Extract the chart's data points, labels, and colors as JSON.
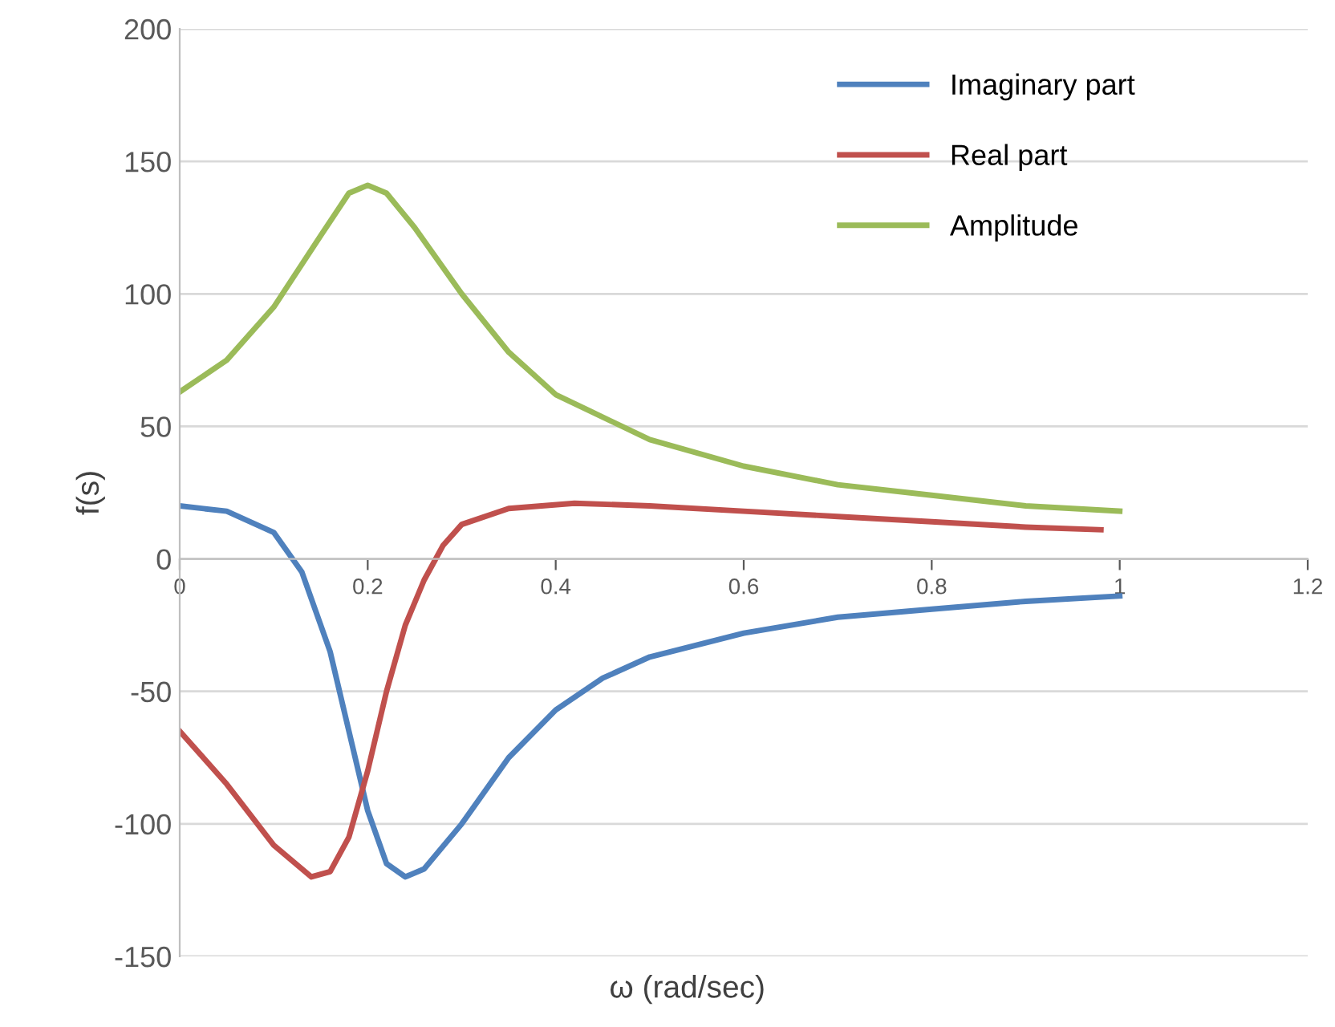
{
  "chart_data": {
    "type": "line",
    "xlabel": "ω (rad/sec)",
    "ylabel": "f(s)",
    "xlim": [
      0,
      1.2
    ],
    "xticks": [
      0,
      0.2,
      0.4,
      0.6,
      0.8,
      1,
      1.2
    ],
    "ylim": [
      -150,
      200
    ],
    "yticks": [
      -150,
      -100,
      -50,
      0,
      50,
      100,
      150,
      200
    ],
    "grid": "y",
    "legend": "top right",
    "marker": "none",
    "line_style": "solid",
    "series": [
      {
        "name": "Imaginary part",
        "color": "#4f81bd",
        "x": [
          0,
          0.05,
          0.1,
          0.13,
          0.16,
          0.18,
          0.2,
          0.22,
          0.24,
          0.26,
          0.3,
          0.35,
          0.4,
          0.45,
          0.5,
          0.6,
          0.7,
          0.8,
          0.9,
          1.0
        ],
        "values": [
          20,
          18,
          10,
          -5,
          -35,
          -65,
          -95,
          -115,
          -120,
          -117,
          -100,
          -75,
          -57,
          -45,
          -37,
          -28,
          -22,
          -19,
          -16,
          -14
        ]
      },
      {
        "name": "Real part",
        "color": "#c0504d",
        "x": [
          0,
          0.05,
          0.1,
          0.14,
          0.16,
          0.18,
          0.2,
          0.22,
          0.24,
          0.26,
          0.28,
          0.3,
          0.35,
          0.42,
          0.5,
          0.6,
          0.7,
          0.8,
          0.9,
          0.98
        ],
        "values": [
          -65,
          -85,
          -108,
          -120,
          -118,
          -105,
          -80,
          -50,
          -25,
          -8,
          5,
          13,
          19,
          21,
          20,
          18,
          16,
          14,
          12,
          11
        ]
      },
      {
        "name": "Amplitude",
        "color": "#9bbb59",
        "x": [
          0,
          0.05,
          0.1,
          0.15,
          0.18,
          0.2,
          0.22,
          0.25,
          0.3,
          0.35,
          0.4,
          0.5,
          0.6,
          0.7,
          0.8,
          0.9,
          1.0
        ],
        "values": [
          63,
          75,
          95,
          122,
          138,
          141,
          138,
          125,
          100,
          78,
          62,
          45,
          35,
          28,
          24,
          20,
          18
        ]
      }
    ]
  }
}
